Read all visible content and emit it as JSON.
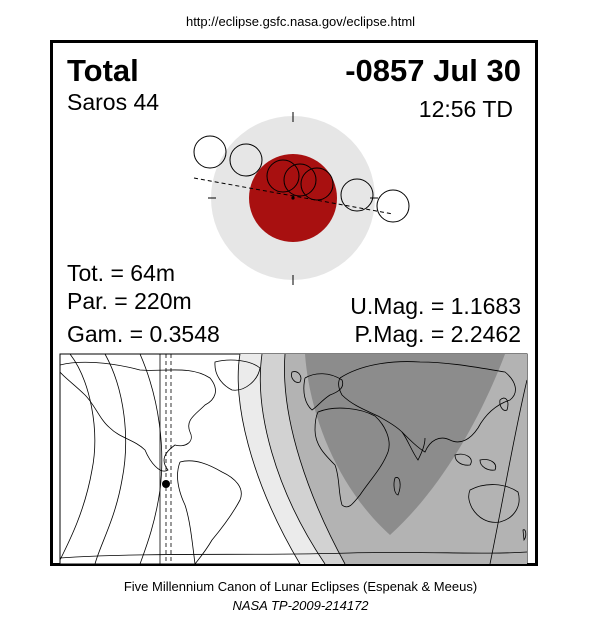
{
  "header_url": "http://eclipse.gsfc.nasa.gov/eclipse.html",
  "eclipse": {
    "type": "Total",
    "date": "-0857 Jul 30",
    "saros": "Saros  44",
    "time": "12:56 TD",
    "tot": "Tot. =  64m",
    "par": "Par. = 220m",
    "gam": "Gam. = 0.3548",
    "umag": "U.Mag. = 1.1683",
    "pmag": "P.Mag. = 2.2462"
  },
  "colors": {
    "umbra": "#a81010",
    "penumbra": "#e6e6e6",
    "map_night": "#8c8c8c",
    "map_band1": "#b3b3b3",
    "map_band2": "#d2d2d2",
    "map_band3": "#ebebeb"
  },
  "footer": {
    "line1": "Five Millennium Canon of Lunar Eclipses (Espenak & Meeus)",
    "line2": "NASA TP-2009-214172"
  }
}
